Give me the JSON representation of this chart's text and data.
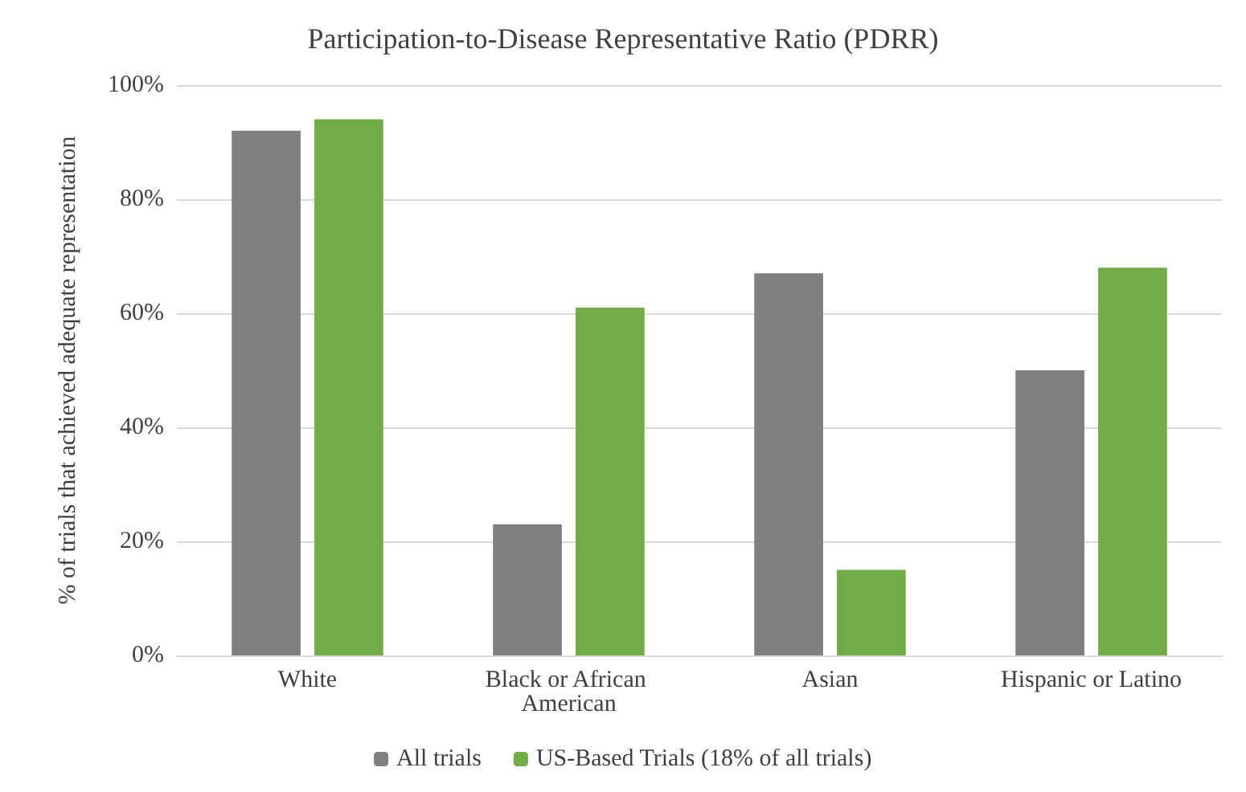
{
  "chart_data": {
    "type": "bar",
    "title": "Participation-to-Disease Representative Ratio (PDRR)",
    "ylabel": "% of trials that achieved adequate representation",
    "categories": [
      "White",
      "Black or African American",
      "Asian",
      "Hispanic or Latino"
    ],
    "series": [
      {
        "name": "All trials",
        "color": "#7f7f7f",
        "values": [
          92,
          23,
          67,
          50
        ]
      },
      {
        "name": "US-Based Trials (18% of all trials)",
        "color": "#70ad47",
        "values": [
          94,
          61,
          15,
          68
        ]
      }
    ],
    "ylim": [
      0,
      100
    ],
    "yticks": [
      {
        "value": 0,
        "label": "0%"
      },
      {
        "value": 20,
        "label": "20%"
      },
      {
        "value": 40,
        "label": "40%"
      },
      {
        "value": 60,
        "label": "60%"
      },
      {
        "value": 80,
        "label": "80%"
      },
      {
        "value": 100,
        "label": "100%"
      }
    ],
    "grid": "y",
    "legend": "bottom"
  }
}
